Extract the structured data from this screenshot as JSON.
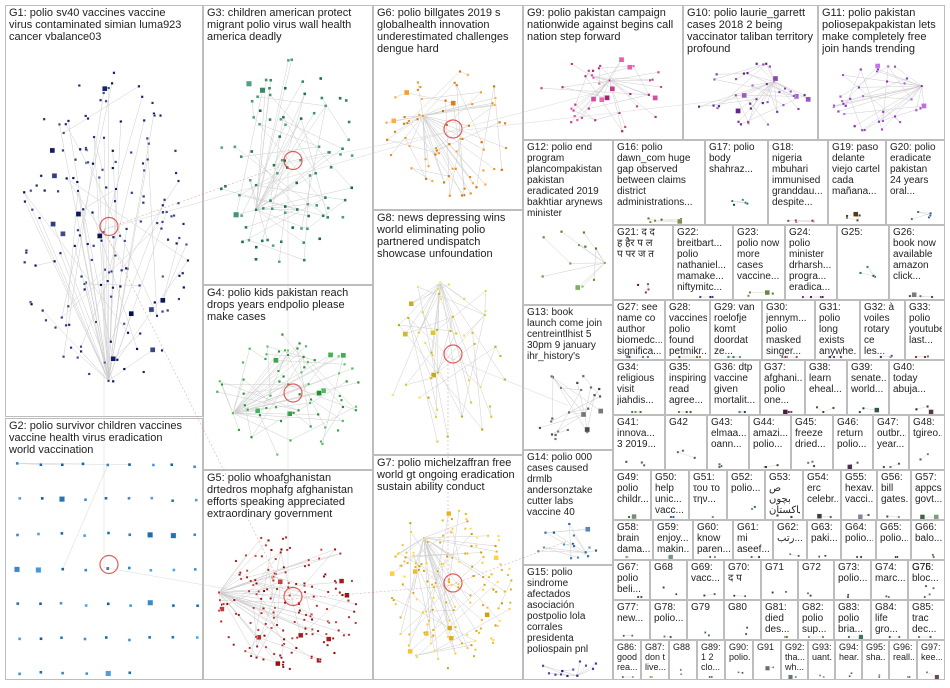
{
  "groups": [
    {
      "id": "g1",
      "label": "G1: polio sv40 vaccines vaccine\nvirus contaminated simian luma923\ncancer vbalance03",
      "color": "#1f2a6e",
      "nodes": 170
    },
    {
      "id": "g2",
      "label": "G2: polio survivor children vaccines\nvaccine health virus eradication\nworld vaccination",
      "color": "#2a7ab8",
      "nodes": 60
    },
    {
      "id": "g3",
      "label": "G3: children american protect\nmigrant polio virus wall health\namerica deadly",
      "color": "#2e7d5b",
      "nodes": 90
    },
    {
      "id": "g4",
      "label": "G4: polio kids pakistan reach\ndrops years endpolio please\nmake cases",
      "color": "#3aa34a",
      "nodes": 70
    },
    {
      "id": "g5",
      "label": "G5: polio whoafghanistan\ndrtedros mophafg afghanistan\nefforts speaking appreciated\nextraordinary government",
      "color": "#a01c1c",
      "nodes": 160
    },
    {
      "id": "g6",
      "label": "G6: polio billgates 2019 s\nglobalhealth innovation\nunderestimated challenges\ndengue hard",
      "color": "#e08a1e",
      "nodes": 70
    },
    {
      "id": "g7",
      "label": "G7: polio michelzaffran free\nworld gt ongoing eradication\nsustain ability conduct",
      "color": "#e0b21e",
      "nodes": 150
    },
    {
      "id": "g8",
      "label": "G8: news depressing wins\nworld eliminating polio\npartnered undispatch\nshowcase unfoundation",
      "color": "#d6c23a",
      "nodes": 50
    },
    {
      "id": "g9",
      "label": "G9: polio pakistan campaign\nnationwide against begins call\nnation step forward",
      "color": "#c23a8a",
      "nodes": 40
    },
    {
      "id": "g10",
      "label": "G10: polio laurie_garrett\ncases 2018 2 being\nvaccinator taliban territory\nprofound",
      "color": "#7a3aa0",
      "nodes": 40
    },
    {
      "id": "g11",
      "label": "G11: polio pakistan\npoliosepakpakistan lets\nmake completely free\njoin hands trending",
      "color": "#9a4ac0",
      "nodes": 35
    },
    {
      "id": "g12",
      "label": "G12: polio end\nprogram\nplancompakistan\npakistan\neradicated 2019\nbakhtiar arynews\nminister",
      "color": "#5a8a3a",
      "nodes": 12
    },
    {
      "id": "g13",
      "label": "G13: book\nlaunch come join\ncentreintlhist 5\n30pm 9 january\nihr_history's",
      "color": "#555555",
      "nodes": 25
    },
    {
      "id": "g14",
      "label": "G14: polio 000\ncases caused\ndrmlb\nandersonztake\ncutter labs\nvaccine 40",
      "color": "#3a6a9a",
      "nodes": 16
    },
    {
      "id": "g15",
      "label": "G15: polio\nsindrome\nafectados\nasociación\npostpolio lola\ncorrales\npresidenta\npoliospain pnl",
      "color": "#3a3a8a",
      "nodes": 12
    },
    {
      "id": "g16",
      "label": "G16: polio\ndawn_com huge\ngap observed\nbetween claims\ndistrict\nadministrations...",
      "color": "#6a6a2a",
      "nodes": 6
    },
    {
      "id": "g17",
      "label": "G17: polio\nbody\nshahraz...",
      "color": "#2a6a6a",
      "nodes": 5
    },
    {
      "id": "g18",
      "label": "G18:\nnigeria\nmbuhari\nimmunised\ngranddau...\ndespite...",
      "color": "#8a2a5a",
      "nodes": 5
    },
    {
      "id": "g19",
      "label": "G19: paso\ndelante\nviejo cartel\ncada\nmañana...",
      "color": "#6a4a2a",
      "nodes": 5
    },
    {
      "id": "g20",
      "label": "G20: polio\neradicate\npakistan\n24 years\noral...",
      "color": "#2a4a6a",
      "nodes": 5
    },
    {
      "id": "g21",
      "label": "G21: द द\nह हैर प ल\nप पर ज त",
      "color": "#6a2a2a",
      "nodes": 4
    },
    {
      "id": "g22",
      "label": "G22:\nbreitbart...\npolio\nnathaniel...\nmamake...\nniftymitc...",
      "color": "#2a2a6a",
      "nodes": 4
    },
    {
      "id": "g23",
      "label": "G23:\npolio now\nmore\ncases\nvaccine...",
      "color": "#4a6a2a",
      "nodes": 4
    },
    {
      "id": "g24",
      "label": "G24:\npolio\nminister\ndrharsh...\nprogra...\neradica...",
      "color": "#6a2a6a",
      "nodes": 4
    },
    {
      "id": "g25",
      "label": "G25:",
      "color": "#2a6a4a",
      "nodes": 4
    },
    {
      "id": "g26",
      "label": "G26:\nbook now\navailable\namazon\nclick...",
      "color": "#5a5a5a",
      "nodes": 4
    },
    {
      "id": "g27",
      "label": "G27: see\nname co\nauthor\nbiomedc...\nsignifica...",
      "color": "#3a5a7a",
      "nodes": 4
    },
    {
      "id": "g28",
      "label": "G28:\nvaccines\npolio\nfound\npetmikr...",
      "color": "#7a5a3a",
      "nodes": 4
    },
    {
      "id": "g29",
      "label": "G29: van\nroelofje\nkomt\ndoordat\nze...",
      "color": "#3a7a5a",
      "nodes": 4
    },
    {
      "id": "g30",
      "label": "G30:\njennym...\npolio\nmasked\nsinger...",
      "color": "#7a3a5a",
      "nodes": 4
    },
    {
      "id": "g31",
      "label": "G31:\npolio\nlong\nexists\nanywhe...",
      "color": "#5a3a7a",
      "nodes": 4
    },
    {
      "id": "g32",
      "label": "G32: à\nvoiles\nrotary ce\nles...",
      "color": "#3a4a7a",
      "nodes": 3
    },
    {
      "id": "g33",
      "label": "G33:\npolio\nyoutube\nlast...",
      "color": "#7a4a3a",
      "nodes": 3
    },
    {
      "id": "g34",
      "label": "G34:\nreligious\nvisit\njiahdis...",
      "color": "#4a7a3a",
      "nodes": 3
    },
    {
      "id": "g35",
      "label": "G35:\ninspiring\nread\nagree...",
      "color": "#6a5a2a",
      "nodes": 3
    },
    {
      "id": "g36",
      "label": "G36: dtp\nvaccine\ngiven\nmortalit...",
      "color": "#2a5a6a",
      "nodes": 3
    },
    {
      "id": "g37",
      "label": "G37:\nafghani...\npolio\none...",
      "color": "#5a2a4a",
      "nodes": 3
    },
    {
      "id": "g38",
      "label": "G38:\nlearn\neheal...",
      "color": "#4a4a2a",
      "nodes": 3
    },
    {
      "id": "g39",
      "label": "G39:\nsenate...\nworld...",
      "color": "#2a4a4a",
      "nodes": 3
    },
    {
      "id": "g40",
      "label": "G40:\ntoday\nabuja...",
      "color": "#4a2a2a",
      "nodes": 3
    },
    {
      "id": "g41",
      "label": "G41:\ninnova...\n3 2019...",
      "color": "#3a3a5a",
      "nodes": 3
    },
    {
      "id": "g42",
      "label": "G42",
      "color": "#5a3a3a",
      "nodes": 3
    },
    {
      "id": "g43",
      "label": "G43:\nelmaa...\noann...",
      "color": "#3a5a3a",
      "nodes": 3
    },
    {
      "id": "g44",
      "label": "G44:\namazi...\npolio...",
      "color": "#5a5a3a",
      "nodes": 3
    },
    {
      "id": "g45",
      "label": "G45:\nfreeze\ndried...",
      "color": "#3a5a5a",
      "nodes": 3
    },
    {
      "id": "g46",
      "label": "G46:\nreturn\npolio...",
      "color": "#5a3a5a",
      "nodes": 3
    },
    {
      "id": "g47",
      "label": "G47:\noutbr...\nyear...",
      "color": "#4a4a6a",
      "nodes": 3
    },
    {
      "id": "g48",
      "label": "G48:\ntgireo...",
      "color": "#6a4a4a",
      "nodes": 2
    },
    {
      "id": "g49",
      "label": "G49:\npolio\nchildr...",
      "color": "#4a6a4a",
      "nodes": 2
    },
    {
      "id": "g50",
      "label": "G50:\nhelp\nunic...\nvacc...",
      "color": "#2a6aa0",
      "nodes": 2
    },
    {
      "id": "g51",
      "label": "G51:\nτου το\nτην...",
      "color": "#6a6a4a",
      "nodes": 2
    },
    {
      "id": "g52",
      "label": "G52:\npolio...",
      "color": "#4a6a6a",
      "nodes": 2
    },
    {
      "id": "g53",
      "label": "G53:\nص بچوں\nپاکستان...",
      "color": "#6a4a6a",
      "nodes": 2
    },
    {
      "id": "g54",
      "label": "G54:\nerc\ncelebr...",
      "color": "#3a3a3a",
      "nodes": 2
    },
    {
      "id": "g55",
      "label": "G55:\nhexav...\nvacci...",
      "color": "#5a5a7a",
      "nodes": 2
    },
    {
      "id": "g56",
      "label": "G56:\nbill\ngates...",
      "color": "#7a5a5a",
      "nodes": 2
    },
    {
      "id": "g57",
      "label": "G57:\nappcs\ngovt...",
      "color": "#5a7a5a",
      "nodes": 2
    },
    {
      "id": "g58",
      "label": "G58:\nbrain\ndama...",
      "color": "#7a7a5a",
      "nodes": 2
    },
    {
      "id": "g59",
      "label": "G59:\nenjoy...\nmakin...",
      "color": "#5a7a7a",
      "nodes": 2
    },
    {
      "id": "g60",
      "label": "G60:\nknow\nparen...",
      "color": "#7a5a7a",
      "nodes": 2
    },
    {
      "id": "g61",
      "label": "G61:\nmi\naseef...",
      "color": "#3a4a5a",
      "nodes": 2
    },
    {
      "id": "g62",
      "label": "G62:\nرتب...",
      "color": "#5a4a3a",
      "nodes": 2
    },
    {
      "id": "g63",
      "label": "G63:\npaki...",
      "color": "#3a5a4a",
      "nodes": 2
    },
    {
      "id": "g64",
      "label": "G64:\npolio...",
      "color": "#4a3a5a",
      "nodes": 2
    },
    {
      "id": "g65",
      "label": "G65:\npolio...",
      "color": "#5a3a4a",
      "nodes": 2
    },
    {
      "id": "g66",
      "label": "G66:\nbalo...",
      "color": "#4a5a3a",
      "nodes": 2
    },
    {
      "id": "g67",
      "label": "G67:\npolio\nbeli...",
      "color": "#3a4a4a",
      "nodes": 2
    },
    {
      "id": "g68",
      "label": "G68",
      "color": "#4a4a3a",
      "nodes": 2
    },
    {
      "id": "g69",
      "label": "G69:\nvacc...",
      "color": "#4a3a4a",
      "nodes": 2
    },
    {
      "id": "g70",
      "label": "G70:\nद प",
      "color": "#3a3a4a",
      "nodes": 2
    },
    {
      "id": "g71",
      "label": "G71",
      "color": "#4a3a3a",
      "nodes": 2
    },
    {
      "id": "g72",
      "label": "G72",
      "color": "#3a4a3a",
      "nodes": 2
    },
    {
      "id": "g73",
      "label": "G73:\npolio...",
      "color": "#5a4a5a",
      "nodes": 2
    },
    {
      "id": "g74",
      "label": "G74:\nmarc...",
      "color": "#4a5a5a",
      "nodes": 2
    },
    {
      "id": "g75",
      "label": "G75:\nbloc...",
      "color": "#5a5a4a",
      "nodes": 2
    },
    {
      "id": "g76",
      "label": "G76",
      "color": "#4a4a5a",
      "nodes": 2
    },
    {
      "id": "g77",
      "label": "G77:\nnew...",
      "color": "#5a4a4a",
      "nodes": 2
    },
    {
      "id": "g78",
      "label": "G78:\npolio...",
      "color": "#4a5a4a",
      "nodes": 2
    },
    {
      "id": "g79",
      "label": "G79",
      "color": "#3a5a6a",
      "nodes": 2
    },
    {
      "id": "g80",
      "label": "G80",
      "color": "#6a3a5a",
      "nodes": 2
    },
    {
      "id": "g81",
      "label": "G81:\ndied\ndes...",
      "color": "#5a6a3a",
      "nodes": 2
    },
    {
      "id": "g82",
      "label": "G82:\npolio\nsup...",
      "color": "#6a5a3a",
      "nodes": 2
    },
    {
      "id": "g83",
      "label": "G83:\npolio\nbria...",
      "color": "#3a6a5a",
      "nodes": 2
    },
    {
      "id": "g84",
      "label": "G84:\nlife\ngro...",
      "color": "#5a3a6a",
      "nodes": 2
    },
    {
      "id": "g85",
      "label": "G85:\ntrac\ndec...",
      "color": "#6a3a3a",
      "nodes": 2
    },
    {
      "id": "g86",
      "label": "G86:\ngood\nrea...",
      "color": "#3a6a3a",
      "nodes": 2
    },
    {
      "id": "g87",
      "label": "G87:\ndon t\nlive...",
      "color": "#6a6a3a",
      "nodes": 2
    },
    {
      "id": "g88",
      "label": "G88",
      "color": "#3a6a6a",
      "nodes": 2
    },
    {
      "id": "g89",
      "label": "G89:\n1 2\nclo...",
      "color": "#6a3a6a",
      "nodes": 2
    },
    {
      "id": "g90",
      "label": "G90:\npolio...",
      "color": "#5a5a6a",
      "nodes": 2
    },
    {
      "id": "g91",
      "label": "G91",
      "color": "#6a5a5a",
      "nodes": 2
    },
    {
      "id": "g92",
      "label": "G92:\ntha...\nwh...",
      "color": "#5a6a5a",
      "nodes": 2
    },
    {
      "id": "g93",
      "label": "G93:\nuant...",
      "color": "#6a6a5a",
      "nodes": 2
    },
    {
      "id": "g94",
      "label": "G94:\nhear...",
      "color": "#5a6a6a",
      "nodes": 2
    },
    {
      "id": "g95",
      "label": "G95:\nsha...",
      "color": "#6a5a6a",
      "nodes": 2
    },
    {
      "id": "g96",
      "label": "G96:\nreall...",
      "color": "#4a5a6a",
      "nodes": 2
    },
    {
      "id": "g97",
      "label": "G97:\nkee...",
      "color": "#6a4a5a",
      "nodes": 2
    }
  ]
}
